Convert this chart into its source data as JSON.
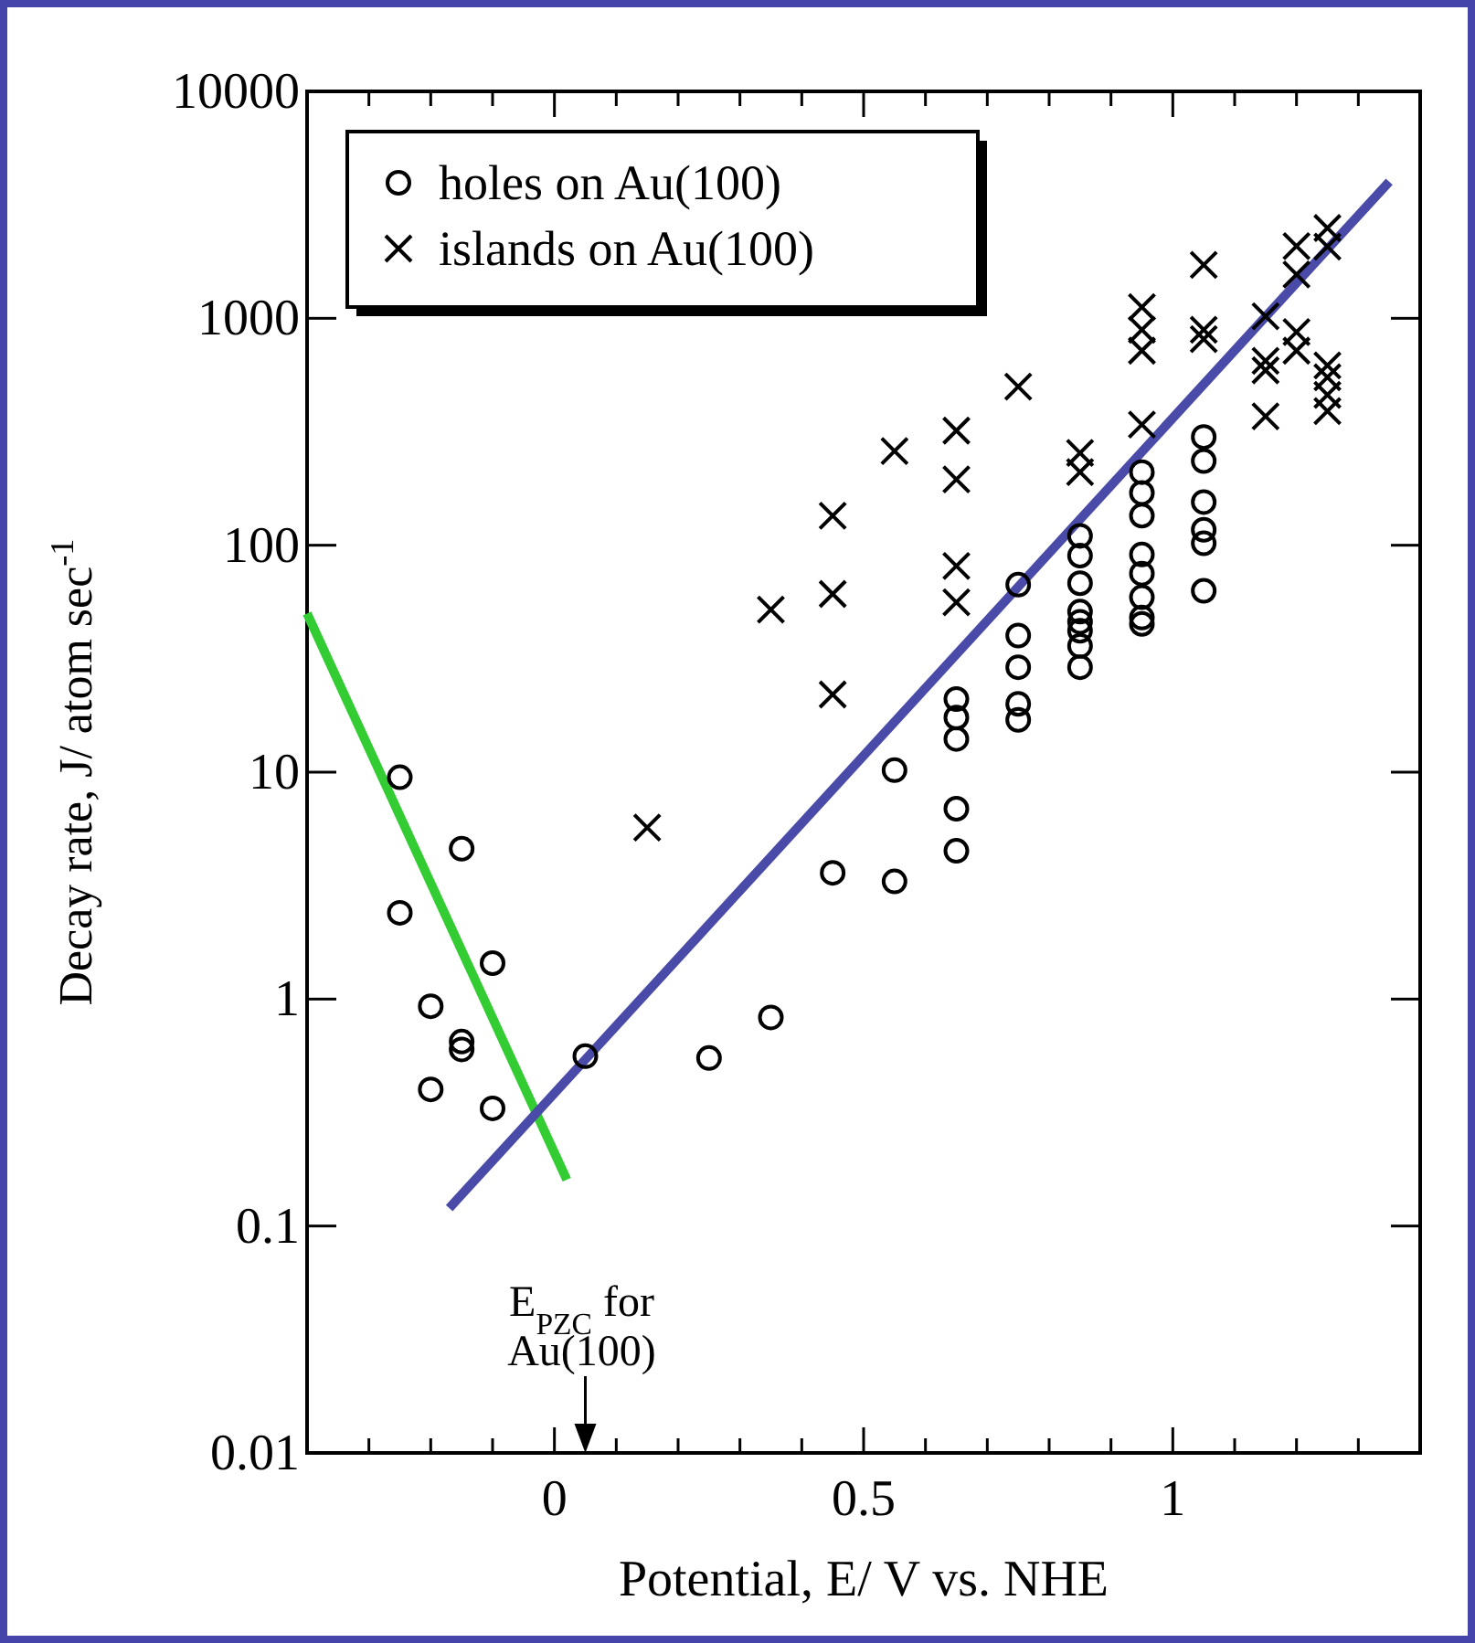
{
  "chart_data": {
    "type": "scatter",
    "xlabel": "Potential, E/ V vs. NHE",
    "ylabel": "Decay rate, J/ atom sec$^{-1}$",
    "log": "y",
    "xlim": [
      -0.4,
      1.4
    ],
    "ylim": [
      0.01,
      10000
    ],
    "xticks": [
      {
        "value": -0.4,
        "label": null
      },
      {
        "value": -0.3,
        "label": null
      },
      {
        "value": -0.2,
        "label": null
      },
      {
        "value": -0.1,
        "label": null
      },
      0,
      {
        "value": 0.1,
        "label": null
      },
      {
        "value": 0.2,
        "label": null
      },
      {
        "value": 0.3,
        "label": null
      },
      {
        "value": 0.4,
        "label": null
      },
      0.5,
      {
        "value": 0.6,
        "label": null
      },
      {
        "value": 0.7,
        "label": null
      },
      {
        "value": 0.8,
        "label": null
      },
      {
        "value": 0.9,
        "label": null
      },
      1,
      {
        "value": 1.1,
        "label": null
      },
      {
        "value": 1.2,
        "label": null
      },
      {
        "value": 1.3,
        "label": null
      },
      {
        "value": 1.4,
        "label": null
      }
    ],
    "yticks": [
      0.01,
      0.1,
      1,
      10,
      100,
      1000,
      10000
    ],
    "grid": false,
    "legend": "top left",
    "annotations": [
      "E$_{PZC}$ for Au(100)"
    ],
    "series": [
      {
        "name": "holes on Au(100)",
        "marker": "circle",
        "color": "#000000",
        "x": [
          -0.25,
          -0.25,
          -0.15,
          -0.2,
          -0.1,
          -0.15,
          -0.15,
          -0.2,
          -0.1,
          0.05,
          0.25,
          0.35,
          0.45,
          0.55,
          0.55,
          0.65,
          0.65,
          0.65,
          0.65,
          0.65,
          0.75,
          0.75,
          0.75,
          0.75,
          0.75,
          0.85,
          0.85,
          0.85,
          0.85,
          0.85,
          0.85,
          0.85,
          0.85,
          0.95,
          0.95,
          0.95,
          0.95,
          0.95,
          0.95,
          0.95,
          0.95,
          1.05,
          1.05,
          1.05,
          1.05,
          1.05,
          1.05
        ],
        "values": [
          9.5,
          2.4,
          4.6,
          0.93,
          1.44,
          0.65,
          0.6,
          0.4,
          0.33,
          0.56,
          0.55,
          0.83,
          3.6,
          3.3,
          10.2,
          21,
          17.4,
          14,
          6.9,
          4.5,
          67,
          40,
          29,
          20,
          17,
          110,
          90,
          68,
          51,
          46,
          42,
          36,
          29,
          210,
          170,
          135,
          91,
          75,
          59,
          48,
          45,
          300,
          235,
          155,
          117,
          102,
          63
        ]
      },
      {
        "name": "islands on Au(100)",
        "marker": "cross",
        "color": "#000000",
        "x": [
          0.15,
          0.35,
          0.45,
          0.45,
          0.45,
          0.55,
          0.65,
          0.65,
          0.65,
          0.65,
          0.75,
          0.85,
          0.85,
          0.95,
          0.95,
          0.95,
          0.95,
          1.05,
          1.05,
          1.05,
          1.15,
          1.15,
          1.15,
          1.15,
          1.2,
          1.2,
          1.2,
          1.2,
          1.25,
          1.25,
          1.25,
          1.25,
          1.25,
          1.25
        ],
        "values": [
          5.7,
          52,
          22,
          61,
          135,
          260,
          320,
          195,
          81,
          56,
          500,
          255,
          210,
          1120,
          890,
          720,
          340,
          1720,
          890,
          810,
          1020,
          650,
          590,
          370,
          2080,
          1560,
          870,
          720,
          2500,
          2070,
          620,
          550,
          460,
          390
        ]
      },
      {
        "type": "line",
        "color": "#33cc33",
        "x": [
          -0.4,
          0.02
        ],
        "values": [
          50,
          0.16
        ]
      },
      {
        "type": "line",
        "color": "#4a4aa8",
        "x": [
          -0.17,
          1.35
        ],
        "values": [
          0.12,
          4000
        ]
      }
    ]
  }
}
